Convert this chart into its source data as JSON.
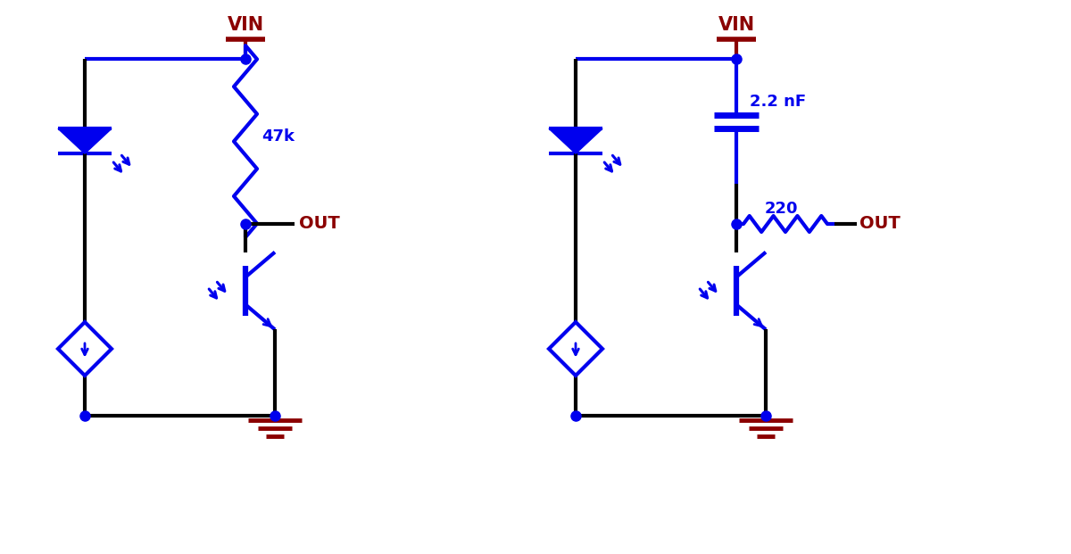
{
  "bg_color": "#ffffff",
  "blue": "#0000ee",
  "dark_red": "#8b0000",
  "black": "#000000",
  "lw": 3.0,
  "fig_width": 12.0,
  "fig_height": 6.21,
  "circuit1": {
    "vin_label": "VIN",
    "out_label": "OUT",
    "resistor_label": "47k"
  },
  "circuit2": {
    "vin_label": "VIN",
    "out_label": "OUT",
    "cap_label": "2.2 nF",
    "resistor_label": "220"
  }
}
